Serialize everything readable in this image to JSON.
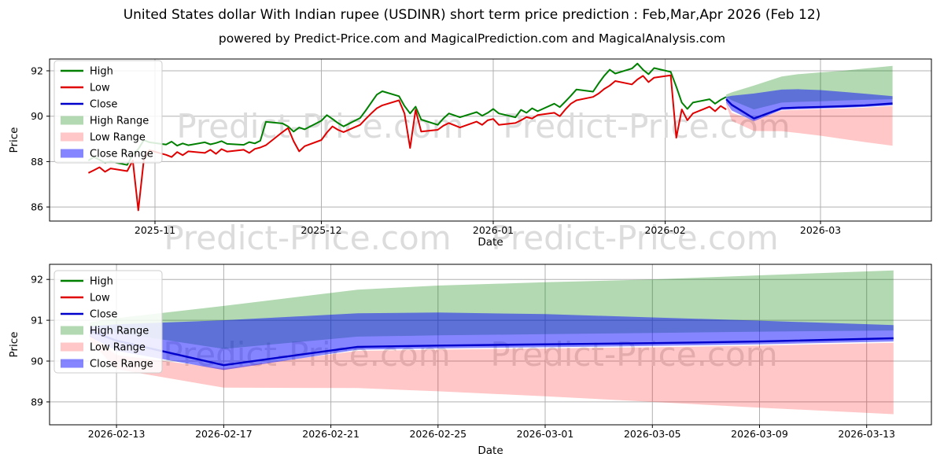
{
  "title": "United States dollar With Indian rupee (USDINR) short term price prediction : Feb,Mar,Apr 2026 (Feb 12)",
  "subtitle": "powered by Predict-Price.com and MagicalPrediction.com and MagicalAnalysis.com",
  "watermark": "Predict-Price.com",
  "colors": {
    "high": "#008000",
    "low": "#e00000",
    "close": "#0000cc",
    "high_range": "rgba(0,128,0,0.30)",
    "low_range": "rgba(255,0,0,0.22)",
    "close_range": "rgba(0,0,255,0.48)",
    "grid": "#b0b0b0",
    "spine": "#000000",
    "watermark": "#dcdcdc",
    "legend_border": "#cccccc"
  },
  "legend": {
    "items": [
      {
        "label": "High",
        "type": "line",
        "color": "high"
      },
      {
        "label": "Low",
        "type": "line",
        "color": "low"
      },
      {
        "label": "Close",
        "type": "line",
        "color": "close"
      },
      {
        "label": "High Range",
        "type": "band",
        "color": "high_range"
      },
      {
        "label": "Low Range",
        "type": "band",
        "color": "low_range"
      },
      {
        "label": "Close Range",
        "type": "band",
        "color": "close_range"
      }
    ]
  },
  "chart_data": [
    {
      "id": "overview",
      "type": "line",
      "xlabel": "Date",
      "ylabel": "Price",
      "grid": true,
      "legend_position": "upper-left",
      "xlim": [
        "2025-10-13",
        "2026-03-21"
      ],
      "ylim": [
        85.38,
        92.52
      ],
      "yticks": [
        86,
        88,
        90,
        92
      ],
      "xticks": [
        {
          "date": "2025-11-01",
          "label": "2025-11"
        },
        {
          "date": "2025-12-01",
          "label": "2025-12"
        },
        {
          "date": "2026-01-01",
          "label": "2026-01"
        },
        {
          "date": "2026-02-01",
          "label": "2026-02"
        },
        {
          "date": "2026-03-01",
          "label": "2026-03"
        }
      ],
      "history": {
        "dates": [
          "2025-10-20",
          "2025-10-21",
          "2025-10-22",
          "2025-10-23",
          "2025-10-24",
          "2025-10-27",
          "2025-10-28",
          "2025-10-29",
          "2025-10-30",
          "2025-10-31",
          "2025-11-03",
          "2025-11-04",
          "2025-11-05",
          "2025-11-06",
          "2025-11-07",
          "2025-11-10",
          "2025-11-11",
          "2025-11-12",
          "2025-11-13",
          "2025-11-14",
          "2025-11-17",
          "2025-11-18",
          "2025-11-19",
          "2025-11-20",
          "2025-11-21",
          "2025-11-24",
          "2025-11-25",
          "2025-11-26",
          "2025-11-27",
          "2025-11-28",
          "2025-12-01",
          "2025-12-02",
          "2025-12-03",
          "2025-12-04",
          "2025-12-05",
          "2025-12-08",
          "2025-12-09",
          "2025-12-10",
          "2025-12-11",
          "2025-12-12",
          "2025-12-15",
          "2025-12-16",
          "2025-12-17",
          "2025-12-18",
          "2025-12-19",
          "2025-12-22",
          "2025-12-23",
          "2025-12-24",
          "2025-12-26",
          "2025-12-29",
          "2025-12-30",
          "2025-12-31",
          "2026-01-01",
          "2026-01-02",
          "2026-01-05",
          "2026-01-06",
          "2026-01-07",
          "2026-01-08",
          "2026-01-09",
          "2026-01-12",
          "2026-01-13",
          "2026-01-14",
          "2026-01-15",
          "2026-01-16",
          "2026-01-19",
          "2026-01-20",
          "2026-01-21",
          "2026-01-22",
          "2026-01-23",
          "2026-01-26",
          "2026-01-27",
          "2026-01-28",
          "2026-01-29",
          "2026-01-30",
          "2026-02-02",
          "2026-02-03",
          "2026-02-04",
          "2026-02-05",
          "2026-02-06",
          "2026-02-09",
          "2026-02-10",
          "2026-02-11",
          "2026-02-12"
        ],
        "high": [
          88.05,
          88.2,
          88.08,
          87.95,
          88.0,
          87.85,
          88.3,
          88.55,
          88.95,
          88.85,
          88.75,
          88.88,
          88.7,
          88.8,
          88.72,
          88.85,
          88.76,
          88.82,
          88.9,
          88.78,
          88.74,
          88.86,
          88.8,
          88.92,
          89.75,
          89.68,
          89.55,
          89.32,
          89.5,
          89.42,
          89.8,
          90.05,
          89.88,
          89.7,
          89.55,
          89.92,
          90.25,
          90.6,
          90.95,
          91.1,
          90.88,
          90.45,
          90.12,
          90.42,
          89.85,
          89.62,
          89.9,
          90.12,
          89.95,
          90.18,
          90.02,
          90.15,
          90.32,
          90.12,
          89.95,
          90.28,
          90.15,
          90.35,
          90.22,
          90.55,
          90.4,
          90.65,
          90.9,
          91.18,
          91.08,
          91.45,
          91.78,
          92.05,
          91.88,
          92.1,
          92.32,
          92.05,
          91.85,
          92.12,
          91.95,
          91.3,
          90.6,
          90.32,
          90.6,
          90.75,
          90.55,
          90.72,
          90.85
        ],
        "low": [
          87.5,
          87.62,
          87.75,
          87.55,
          87.7,
          87.58,
          88.05,
          85.85,
          88.1,
          88.5,
          88.3,
          88.2,
          88.42,
          88.28,
          88.45,
          88.38,
          88.52,
          88.34,
          88.55,
          88.44,
          88.52,
          88.38,
          88.56,
          88.62,
          88.72,
          89.3,
          89.48,
          88.9,
          88.45,
          88.68,
          88.95,
          89.28,
          89.55,
          89.4,
          89.3,
          89.62,
          89.88,
          90.12,
          90.35,
          90.48,
          90.7,
          90.12,
          88.6,
          90.28,
          89.32,
          89.4,
          89.58,
          89.7,
          89.5,
          89.76,
          89.62,
          89.82,
          89.88,
          89.62,
          89.7,
          89.82,
          89.96,
          89.9,
          90.05,
          90.15,
          90.0,
          90.3,
          90.55,
          90.7,
          90.85,
          91.0,
          91.2,
          91.35,
          91.55,
          91.4,
          91.62,
          91.78,
          91.5,
          91.7,
          91.8,
          89.05,
          90.3,
          89.82,
          90.12,
          90.42,
          90.22,
          90.45,
          90.3
        ]
      },
      "prediction": {
        "dates": [
          "2026-02-12",
          "2026-02-13",
          "2026-02-17",
          "2026-02-22",
          "2026-02-25",
          "2026-03-01",
          "2026-03-05",
          "2026-03-09",
          "2026-03-14"
        ],
        "close": [
          90.75,
          90.5,
          89.9,
          90.35,
          90.38,
          90.41,
          90.44,
          90.48,
          90.56
        ],
        "close_upper": [
          90.85,
          90.9,
          91.0,
          91.17,
          91.19,
          91.15,
          91.07,
          90.99,
          90.88
        ],
        "close_lower": [
          90.6,
          90.25,
          89.78,
          90.28,
          90.31,
          90.34,
          90.37,
          90.41,
          90.48
        ],
        "high_upper": [
          90.95,
          91.05,
          91.35,
          91.75,
          91.85,
          91.93,
          92.0,
          92.1,
          92.22
        ],
        "high_lower": [
          90.85,
          90.7,
          90.3,
          90.6,
          90.63,
          90.66,
          90.69,
          90.72,
          90.75
        ],
        "low_upper": [
          90.65,
          90.15,
          89.82,
          90.25,
          90.28,
          90.31,
          90.34,
          90.38,
          90.45
        ],
        "low_lower": [
          90.5,
          89.8,
          89.35,
          89.34,
          89.26,
          89.14,
          89.0,
          88.86,
          88.7
        ]
      }
    },
    {
      "id": "forecast-detail",
      "type": "line",
      "xlabel": "Date",
      "ylabel": "Price",
      "grid": true,
      "legend_position": "upper-left",
      "xlim": [
        "2026-02-10T12:00:00",
        "2026-03-15T10:00:00"
      ],
      "ylim": [
        88.44,
        92.37
      ],
      "yticks": [
        89,
        90,
        91,
        92
      ],
      "xticks": [
        {
          "date": "2026-02-13",
          "label": "2026-02-13"
        },
        {
          "date": "2026-02-17",
          "label": "2026-02-17"
        },
        {
          "date": "2026-02-21",
          "label": "2026-02-21"
        },
        {
          "date": "2026-02-25",
          "label": "2026-02-25"
        },
        {
          "date": "2026-03-01",
          "label": "2026-03-01"
        },
        {
          "date": "2026-03-05",
          "label": "2026-03-05"
        },
        {
          "date": "2026-03-09",
          "label": "2026-03-09"
        },
        {
          "date": "2026-03-13",
          "label": "2026-03-13"
        }
      ],
      "prediction": {
        "dates": [
          "2026-02-12",
          "2026-02-13",
          "2026-02-17",
          "2026-02-22",
          "2026-02-25",
          "2026-03-01",
          "2026-03-05",
          "2026-03-09",
          "2026-03-14"
        ],
        "close": [
          90.75,
          90.5,
          89.9,
          90.35,
          90.38,
          90.41,
          90.44,
          90.48,
          90.56
        ],
        "close_upper": [
          90.85,
          90.9,
          91.0,
          91.17,
          91.19,
          91.15,
          91.07,
          90.99,
          90.88
        ],
        "close_lower": [
          90.6,
          90.25,
          89.78,
          90.28,
          90.31,
          90.34,
          90.37,
          90.41,
          90.48
        ],
        "high_upper": [
          90.95,
          91.05,
          91.35,
          91.75,
          91.85,
          91.93,
          92.0,
          92.1,
          92.22
        ],
        "high_lower": [
          90.85,
          90.7,
          90.3,
          90.6,
          90.63,
          90.66,
          90.69,
          90.72,
          90.75
        ],
        "low_upper": [
          90.65,
          90.15,
          89.82,
          90.25,
          90.28,
          90.31,
          90.34,
          90.38,
          90.45
        ],
        "low_lower": [
          90.5,
          89.8,
          89.35,
          89.34,
          89.26,
          89.14,
          89.0,
          88.86,
          88.7
        ]
      }
    }
  ]
}
